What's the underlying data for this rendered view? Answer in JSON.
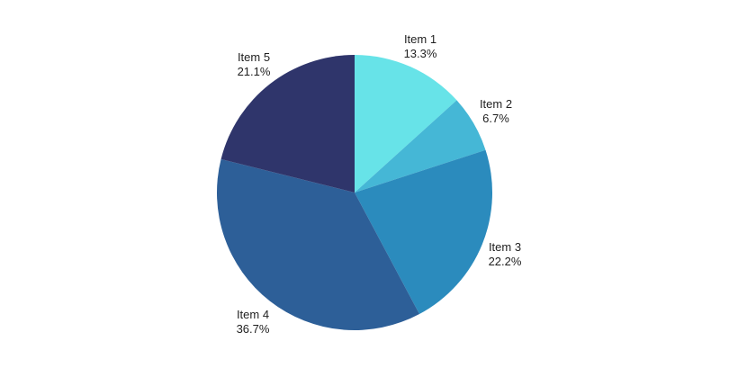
{
  "chart_data": {
    "type": "pie",
    "slices": [
      {
        "label": "Item 1",
        "value": 13.3,
        "percent_label": "13.3%",
        "color": "#67e3e8"
      },
      {
        "label": "Item 2",
        "value": 6.7,
        "percent_label": "6.7%",
        "color": "#45b7d6"
      },
      {
        "label": "Item 3",
        "value": 22.2,
        "percent_label": "22.2%",
        "color": "#2b8bbd"
      },
      {
        "label": "Item 4",
        "value": 36.7,
        "percent_label": "36.7%",
        "color": "#2d5f98"
      },
      {
        "label": "Item 5",
        "value": 21.1,
        "percent_label": "21.1%",
        "color": "#2f356b"
      }
    ],
    "start_angle_deg": 0,
    "direction": "clockwise",
    "legend": "none",
    "labels": "outside"
  }
}
